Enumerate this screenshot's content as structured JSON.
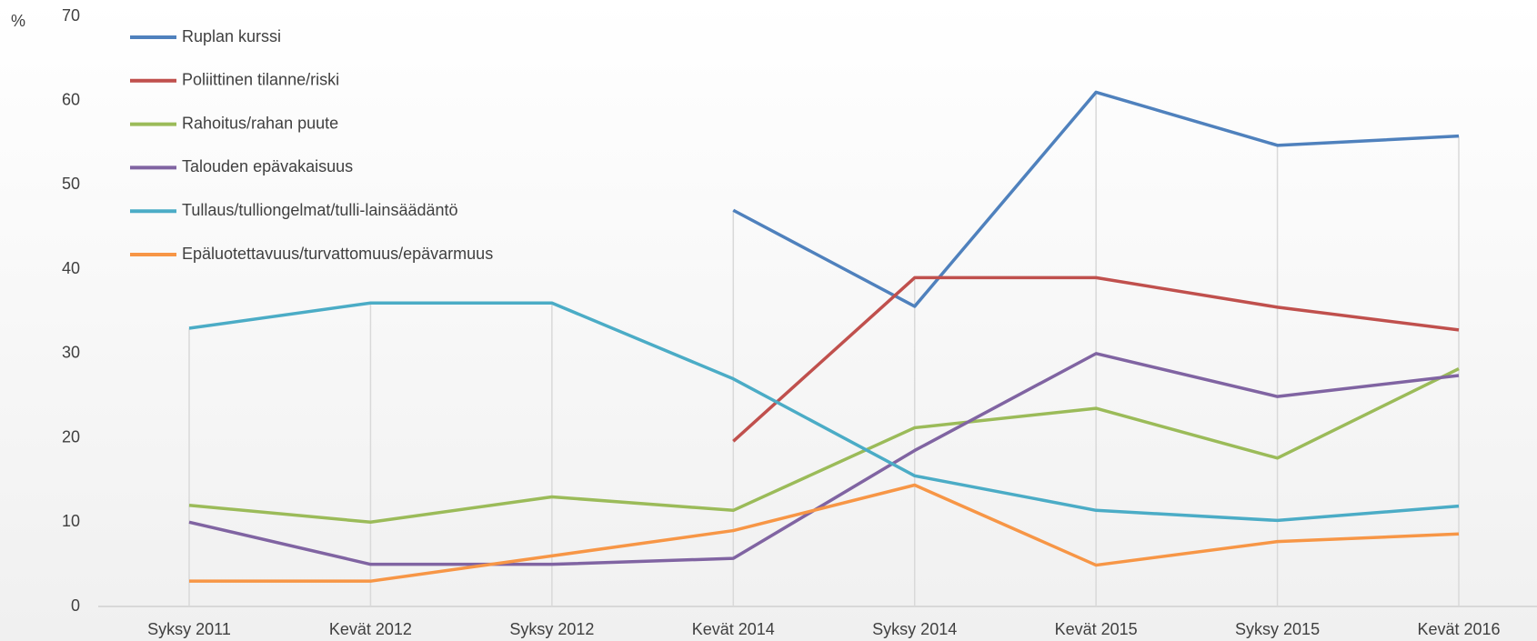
{
  "chart_data": {
    "type": "line",
    "y_label": "%",
    "categories": [
      "Syksy 2011",
      "Kevät 2012",
      "Syksy 2012",
      "Kevät 2014",
      "Syksy 2014",
      "Kevät 2015",
      "Syksy 2015",
      "Kevät 2016"
    ],
    "series": [
      {
        "name": "Ruplan kurssi",
        "color": "#4f81bd",
        "values": [
          null,
          null,
          null,
          47,
          35.6,
          61,
          54.7,
          55.8
        ]
      },
      {
        "name": "Poliittinen tilanne/riski",
        "color": "#c0504d",
        "values": [
          null,
          null,
          null,
          19.6,
          39,
          39,
          35.5,
          32.8
        ]
      },
      {
        "name": "Rahoitus/rahan puute",
        "color": "#9bbb59",
        "values": [
          12,
          10,
          13,
          11.4,
          21.2,
          23.5,
          17.6,
          28.2
        ]
      },
      {
        "name": "Talouden epävakaisuus",
        "color": "#8064a2",
        "values": [
          10,
          5,
          5,
          5.7,
          18.5,
          30,
          24.9,
          27.4
        ]
      },
      {
        "name": "Tullaus/tulliongelmat/tulli-lainsäädäntö",
        "color": "#4bacc6",
        "values": [
          33,
          36,
          36,
          27,
          15.5,
          11.4,
          10.2,
          11.9
        ]
      },
      {
        "name": "Epäluotettavuus/turvattomuus/epävarmuus",
        "color": "#f79646",
        "values": [
          3,
          3,
          6,
          9,
          14.4,
          4.9,
          7.7,
          8.6
        ]
      }
    ],
    "ylim": [
      0,
      70
    ],
    "yticks": [
      0,
      10,
      20,
      30,
      40,
      50,
      60,
      70
    ],
    "legend": "top-left",
    "drop_lines": true
  }
}
